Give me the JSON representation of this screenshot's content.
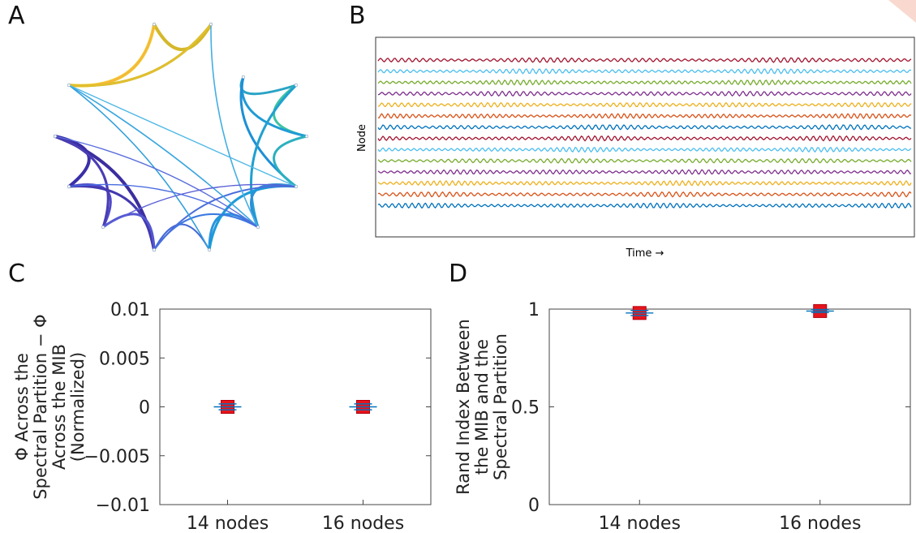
{
  "panels": {
    "A": {
      "letter": "A"
    },
    "B": {
      "letter": "B",
      "xlabel": "Time →",
      "ylabel": "Node",
      "trace_colors": [
        "#a2142f",
        "#4dbeee",
        "#77ac30",
        "#7e2f8e",
        "#edb120",
        "#d95319",
        "#0072bd"
      ]
    },
    "C": {
      "letter": "C"
    },
    "D": {
      "letter": "D"
    }
  },
  "chart_data": [
    {
      "panel": "C",
      "type": "scatter",
      "categories": [
        "14 nodes",
        "16 nodes"
      ],
      "values": [
        0.0,
        0.0
      ],
      "error": [
        0.0003,
        0.0003
      ],
      "ylabel_lines": [
        "Φ Across the",
        "Spectral Partition − Φ",
        "Across the MIB",
        "(Normalized)"
      ],
      "ylim": [
        -0.01,
        0.01
      ],
      "yticks": [
        -0.01,
        -0.005,
        0,
        0.005,
        0.01
      ],
      "ytick_labels": [
        "−0.01",
        "−0.005",
        "0",
        "0.005",
        "0.01"
      ],
      "marker_color": "#e8141b",
      "errorbar_color": "#0072bd"
    },
    {
      "panel": "D",
      "type": "scatter",
      "categories": [
        "14 nodes",
        "16 nodes"
      ],
      "values": [
        0.98,
        0.99
      ],
      "error": [
        0.013,
        0.008
      ],
      "ylabel_lines": [
        "Rand Index Between",
        "the MIB and the",
        "Spectral Partition"
      ],
      "ylim": [
        0,
        1
      ],
      "yticks": [
        0,
        0.5,
        1
      ],
      "ytick_labels": [
        "0",
        "0.5",
        "1"
      ],
      "marker_color": "#e8141b",
      "errorbar_color": "#0072bd"
    }
  ]
}
